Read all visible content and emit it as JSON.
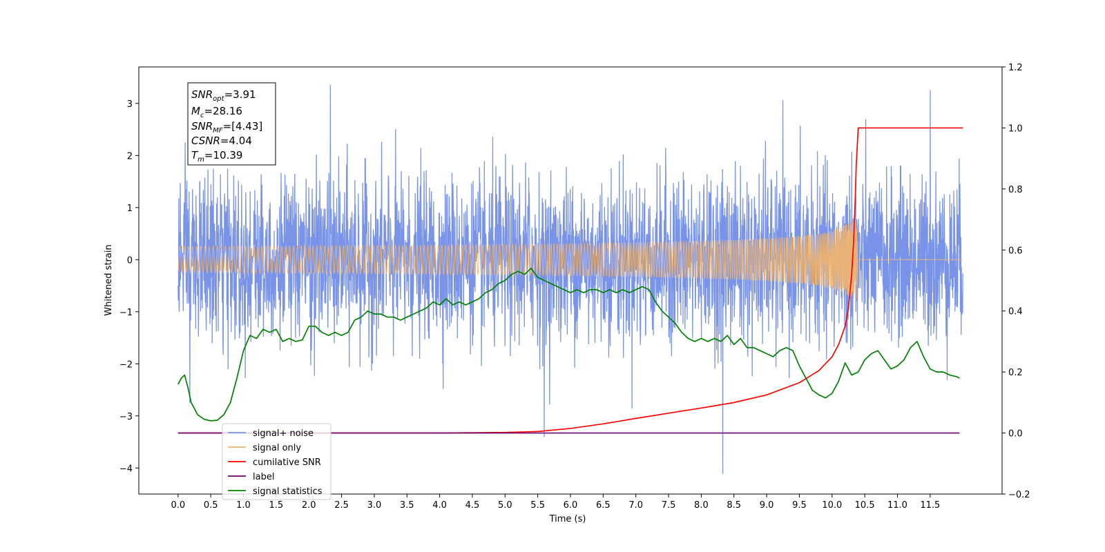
{
  "chart_data": {
    "type": "line",
    "xlabel": "Time (s)",
    "ylabel": "Whitened strain",
    "xlim": [
      -0.6,
      12.6
    ],
    "ylim": [
      -4.5,
      3.7
    ],
    "y2lim": [
      -0.2,
      1.2
    ],
    "x_ticks": [
      0.0,
      0.5,
      1.0,
      1.5,
      2.0,
      2.5,
      3.0,
      3.5,
      4.0,
      4.5,
      5.0,
      5.5,
      6.0,
      6.5,
      7.0,
      7.5,
      8.0,
      8.5,
      9.0,
      9.5,
      10.0,
      10.5,
      11.0,
      11.5
    ],
    "x_tick_labels": [
      "0.0",
      "0.5",
      "1.0",
      "1.5",
      "2.0",
      "2.5",
      "3.0",
      "3.5",
      "4.0",
      "4.5",
      "5.0",
      "5.5",
      "6.0",
      "6.5",
      "7.0",
      "7.5",
      "8.0",
      "8.5",
      "9.0",
      "9.5",
      "10.0",
      "10.5",
      "11.0",
      "11.5"
    ],
    "y_ticks": [
      3,
      2,
      1,
      0,
      -1,
      -2,
      -3,
      -4
    ],
    "y_tick_labels": [
      "3",
      "2",
      "1",
      "0",
      "−1",
      "−2",
      "−3",
      "−4"
    ],
    "y2_ticks": [
      1.2,
      1.0,
      0.8,
      0.6,
      0.4,
      0.2,
      0.0,
      -0.2
    ],
    "y2_tick_labels": [
      "1.2",
      "1.0",
      "0.8",
      "0.6",
      "0.4",
      "0.2",
      "0.0",
      "−0.2"
    ],
    "grid": false,
    "legend_position": "lower-left",
    "annotation": {
      "lines": [
        {
          "base": "SNR",
          "sub": "opt",
          "value": "=3.91"
        },
        {
          "base": "M",
          "sub": "c",
          "value": "=28.16"
        },
        {
          "base": "SNR",
          "sub": "MF",
          "value": "=[4.43]"
        },
        {
          "base": "CSNR",
          "sub": "",
          "value": "=4.04"
        },
        {
          "base": "T",
          "sub": "m",
          "value": "=10.39"
        }
      ]
    },
    "series": [
      {
        "name": "signal+ noise",
        "color": "#7893e8",
        "axis": "left",
        "kind": "noisy-strain",
        "x_range": [
          0.0,
          12.0
        ],
        "typical_envelope": [
          -1.4,
          1.4
        ],
        "peaks": [
          {
            "x": 2.33,
            "y": 3.35
          },
          {
            "x": 8.33,
            "y": -4.1
          },
          {
            "x": 5.6,
            "y": -3.4
          },
          {
            "x": 0.18,
            "y": -2.75
          },
          {
            "x": 11.5,
            "y": 3.25
          }
        ]
      },
      {
        "name": "signal only",
        "color": "#f3b56a",
        "axis": "left",
        "kind": "chirp",
        "x_range": [
          0.0,
          12.0
        ],
        "merger_time": 10.39,
        "peak_amplitude": 0.75
      },
      {
        "name": "cumilative SNR",
        "color": "#ff0000",
        "axis": "right",
        "x": [
          0.0,
          4.0,
          5.0,
          5.5,
          6.0,
          6.5,
          7.0,
          7.5,
          8.0,
          8.5,
          9.0,
          9.5,
          9.8,
          10.0,
          10.1,
          10.2,
          10.25,
          10.3,
          10.33,
          10.35,
          10.37,
          10.39,
          10.4,
          12.0
        ],
        "values": [
          0.0,
          0.0,
          0.002,
          0.005,
          0.015,
          0.03,
          0.048,
          0.065,
          0.082,
          0.1,
          0.125,
          0.165,
          0.205,
          0.25,
          0.29,
          0.35,
          0.41,
          0.52,
          0.63,
          0.74,
          0.88,
          0.96,
          1.0,
          1.0
        ]
      },
      {
        "name": "label",
        "color": "#6a006a",
        "axis": "right",
        "x": [
          0.0,
          11.95
        ],
        "values": [
          0.0,
          0.0
        ]
      },
      {
        "name": "signal statistics",
        "color": "#008000",
        "axis": "right",
        "x": [
          0.0,
          0.05,
          0.1,
          0.15,
          0.2,
          0.3,
          0.4,
          0.5,
          0.6,
          0.7,
          0.8,
          0.9,
          1.0,
          1.1,
          1.2,
          1.3,
          1.4,
          1.5,
          1.6,
          1.7,
          1.8,
          1.9,
          2.0,
          2.1,
          2.2,
          2.3,
          2.4,
          2.5,
          2.6,
          2.7,
          2.8,
          2.9,
          3.0,
          3.1,
          3.2,
          3.3,
          3.4,
          3.5,
          3.6,
          3.7,
          3.8,
          3.9,
          4.0,
          4.1,
          4.2,
          4.3,
          4.4,
          4.5,
          4.6,
          4.7,
          4.8,
          4.9,
          5.0,
          5.1,
          5.2,
          5.3,
          5.4,
          5.5,
          5.6,
          5.7,
          5.8,
          5.9,
          6.0,
          6.1,
          6.2,
          6.3,
          6.4,
          6.5,
          6.6,
          6.7,
          6.8,
          6.9,
          7.0,
          7.1,
          7.2,
          7.3,
          7.4,
          7.5,
          7.6,
          7.7,
          7.8,
          7.9,
          8.0,
          8.1,
          8.2,
          8.3,
          8.4,
          8.5,
          8.6,
          8.7,
          8.8,
          8.9,
          9.0,
          9.1,
          9.2,
          9.3,
          9.4,
          9.5,
          9.6,
          9.7,
          9.8,
          9.9,
          10.0,
          10.1,
          10.2,
          10.3,
          10.4,
          10.5,
          10.6,
          10.7,
          10.8,
          10.9,
          11.0,
          11.1,
          11.2,
          11.3,
          11.4,
          11.5,
          11.6,
          11.7,
          11.8,
          11.9,
          11.95
        ],
        "values": [
          0.16,
          0.18,
          0.19,
          0.15,
          0.1,
          0.06,
          0.045,
          0.04,
          0.042,
          0.06,
          0.1,
          0.18,
          0.27,
          0.32,
          0.31,
          0.34,
          0.33,
          0.34,
          0.3,
          0.31,
          0.3,
          0.305,
          0.35,
          0.35,
          0.33,
          0.32,
          0.33,
          0.32,
          0.33,
          0.37,
          0.38,
          0.4,
          0.39,
          0.39,
          0.38,
          0.38,
          0.37,
          0.38,
          0.39,
          0.4,
          0.41,
          0.43,
          0.42,
          0.44,
          0.42,
          0.43,
          0.42,
          0.43,
          0.44,
          0.46,
          0.47,
          0.49,
          0.5,
          0.52,
          0.53,
          0.52,
          0.54,
          0.51,
          0.5,
          0.49,
          0.48,
          0.47,
          0.46,
          0.47,
          0.46,
          0.47,
          0.47,
          0.46,
          0.47,
          0.46,
          0.47,
          0.46,
          0.47,
          0.48,
          0.47,
          0.43,
          0.4,
          0.38,
          0.36,
          0.33,
          0.31,
          0.3,
          0.31,
          0.3,
          0.31,
          0.3,
          0.32,
          0.29,
          0.31,
          0.28,
          0.28,
          0.27,
          0.26,
          0.25,
          0.27,
          0.28,
          0.27,
          0.22,
          0.18,
          0.14,
          0.125,
          0.115,
          0.13,
          0.17,
          0.23,
          0.19,
          0.2,
          0.24,
          0.26,
          0.27,
          0.24,
          0.21,
          0.22,
          0.24,
          0.28,
          0.3,
          0.25,
          0.21,
          0.2,
          0.2,
          0.19,
          0.185,
          0.18
        ]
      }
    ]
  }
}
